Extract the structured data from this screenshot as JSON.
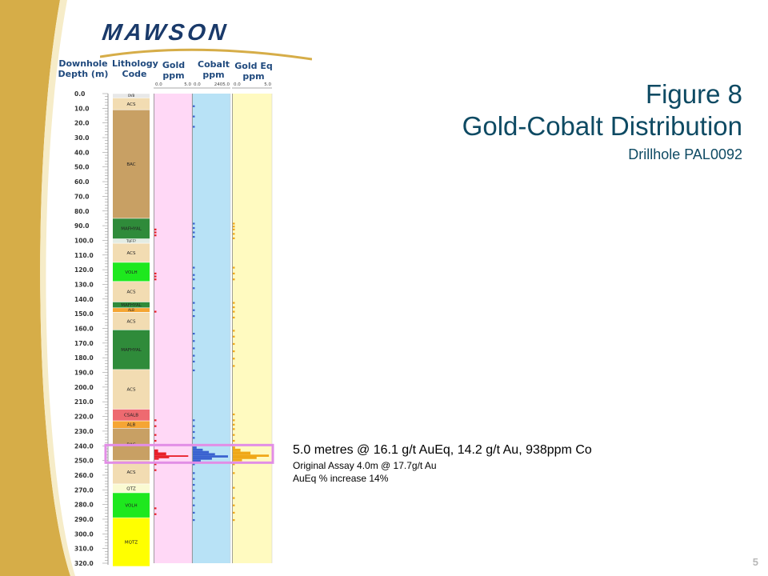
{
  "logo": {
    "text": "MAWSON"
  },
  "columns": {
    "depth": "Downhole Depth (m)",
    "lith": "Lithology Code",
    "gold": "Gold ppm",
    "cobalt": "Cobalt ppm",
    "goldeq": "Gold Eq ppm"
  },
  "title": {
    "line1": "Figure 8",
    "line2": "Gold-Cobalt Distribution",
    "line3": "Drillhole PAL0092"
  },
  "annotation": {
    "main": "5.0 metres @ 16.1 g/t AuEq, 14.2 g/t Au, 938ppm Co",
    "line2": "Original Assay 4.0m @ 17.7g/t Au",
    "line3": "AuEq % increase 14%"
  },
  "page_number": "5",
  "chart_data": {
    "type": "strip-log",
    "depth_axis": {
      "label": "Downhole Depth (m)",
      "min": 0,
      "max": 320,
      "ticks": [
        "0.0",
        "10.0",
        "20.0",
        "30.0",
        "40.0",
        "50.0",
        "60.0",
        "70.0",
        "80.0",
        "90.0",
        "100.0",
        "110.0",
        "120.0",
        "130.0",
        "140.0",
        "150.0",
        "160.0",
        "170.0",
        "180.0",
        "190.0",
        "200.0",
        "210.0",
        "220.0",
        "230.0",
        "240.0",
        "250.0",
        "260.0",
        "270.0",
        "280.0",
        "290.0",
        "300.0",
        "310.0",
        "320.0"
      ]
    },
    "lithology": [
      {
        "code": "OVB",
        "from": 0,
        "to": 3,
        "color": "#e8e8e8"
      },
      {
        "code": "ACS",
        "from": 3,
        "to": 11,
        "color": "#f2dcb2"
      },
      {
        "code": "BAC",
        "from": 11,
        "to": 85,
        "color": "#c8a064"
      },
      {
        "code": "MAFHYAL",
        "from": 85,
        "to": 99,
        "color": "#2f8b3a"
      },
      {
        "code": "TUFF?",
        "from": 99,
        "to": 102,
        "color": "#e3ece3"
      },
      {
        "code": "ACS",
        "from": 102,
        "to": 115,
        "color": "#f2dcb2"
      },
      {
        "code": "VOLH",
        "from": 115,
        "to": 128,
        "color": "#1ee81e"
      },
      {
        "code": "ACS",
        "from": 128,
        "to": 142,
        "color": "#f2dcb2"
      },
      {
        "code": "MAFHYAL",
        "from": 142,
        "to": 146,
        "color": "#2f8b3a"
      },
      {
        "code": "ALB",
        "from": 146,
        "to": 149,
        "color": "#f5a533"
      },
      {
        "code": "ACS",
        "from": 149,
        "to": 161,
        "color": "#f2dcb2"
      },
      {
        "code": "MAFHYAL",
        "from": 161,
        "to": 188,
        "color": "#2f8b3a"
      },
      {
        "code": "ACS",
        "from": 188,
        "to": 215,
        "color": "#f2dcb2"
      },
      {
        "code": "CSALB",
        "from": 215,
        "to": 223,
        "color": "#ee6a70"
      },
      {
        "code": "ALB",
        "from": 223,
        "to": 228,
        "color": "#f5a533"
      },
      {
        "code": "BAC",
        "from": 228,
        "to": 250,
        "color": "#c8a064"
      },
      {
        "code": "ACS",
        "from": 250,
        "to": 266,
        "color": "#f2dcb2"
      },
      {
        "code": "QTZ",
        "from": 266,
        "to": 272,
        "color": "#fafad2"
      },
      {
        "code": "VOLH",
        "from": 272,
        "to": 289,
        "color": "#1ee81e"
      },
      {
        "code": "MQTZ",
        "from": 289,
        "to": 322,
        "color": "#ffff00"
      }
    ],
    "tracks": [
      {
        "name": "Gold ppm",
        "scale": [
          0.0,
          5.0
        ],
        "scale_labels": [
          "0.0",
          "5.0"
        ],
        "background": "#ffd8f6",
        "color": "#e8202a",
        "intervals": [
          {
            "from": 242.5,
            "to": 244.5,
            "value": 0.5
          },
          {
            "from": 244.5,
            "to": 246.5,
            "value": 1.6
          },
          {
            "from": 246.5,
            "to": 247.5,
            "value": 4.6
          },
          {
            "from": 247.5,
            "to": 248.5,
            "value": 2.0
          },
          {
            "from": 248.5,
            "to": 249.5,
            "value": 0.6
          }
        ],
        "ticks": [
          92,
          94,
          96,
          122,
          124,
          126,
          148,
          222,
          226,
          232,
          236,
          252,
          256,
          282,
          286
        ]
      },
      {
        "name": "Cobalt ppm",
        "scale": [
          0.0,
          2405.0
        ],
        "scale_labels": [
          "0.0",
          "2405.0"
        ],
        "background": "#b8e2f6",
        "color": "#3a62d0",
        "intervals": [
          {
            "from": 240.5,
            "to": 242.0,
            "value": 250
          },
          {
            "from": 242.0,
            "to": 243.5,
            "value": 650
          },
          {
            "from": 243.5,
            "to": 245.0,
            "value": 1050
          },
          {
            "from": 245.0,
            "to": 246.5,
            "value": 1450
          },
          {
            "from": 246.5,
            "to": 248.0,
            "value": 2300
          },
          {
            "from": 248.0,
            "to": 249.5,
            "value": 1250
          },
          {
            "from": 249.5,
            "to": 251.0,
            "value": 520
          }
        ],
        "ticks": [
          8,
          15,
          22,
          88,
          91,
          94,
          97,
          118,
          123,
          126,
          132,
          142,
          147,
          151,
          163,
          168,
          173,
          178,
          182,
          188,
          222,
          226,
          230,
          234,
          252,
          258,
          262,
          266,
          270,
          275,
          280,
          285,
          290
        ]
      },
      {
        "name": "Gold Eq ppm",
        "scale": [
          0.0,
          5.0
        ],
        "scale_labels": [
          "0.0",
          "5.0"
        ],
        "background": "#fffac0",
        "color": "#f0a818",
        "intervals": [
          {
            "from": 240.5,
            "to": 242.0,
            "value": 0.3
          },
          {
            "from": 242.0,
            "to": 244.0,
            "value": 1.0
          },
          {
            "from": 244.0,
            "to": 246.0,
            "value": 2.3
          },
          {
            "from": 246.0,
            "to": 247.5,
            "value": 4.7
          },
          {
            "from": 247.5,
            "to": 249.0,
            "value": 3.1
          },
          {
            "from": 249.0,
            "to": 250.5,
            "value": 1.2
          }
        ],
        "ticks": [
          88,
          90,
          92,
          95,
          98,
          118,
          122,
          126,
          142,
          145,
          148,
          152,
          161,
          165,
          170,
          175,
          180,
          185,
          218,
          222,
          225,
          228,
          232,
          236,
          252,
          258,
          268,
          275,
          280,
          285,
          290
        ]
      }
    ],
    "highlight": {
      "from": 239.5,
      "to": 251.5,
      "color": "#e28ee6"
    }
  }
}
